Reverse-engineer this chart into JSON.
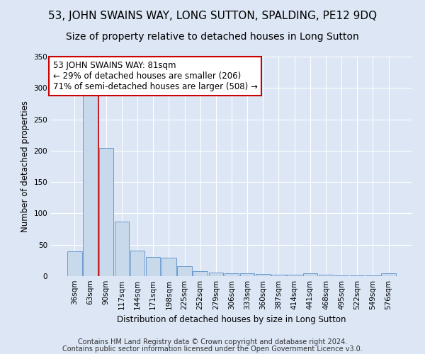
{
  "title": "53, JOHN SWAINS WAY, LONG SUTTON, SPALDING, PE12 9DQ",
  "subtitle": "Size of property relative to detached houses in Long Sutton",
  "xlabel": "Distribution of detached houses by size in Long Sutton",
  "ylabel": "Number of detached properties",
  "footer1": "Contains HM Land Registry data © Crown copyright and database right 2024.",
  "footer2": "Contains public sector information licensed under the Open Government Licence v3.0.",
  "bar_labels": [
    "36sqm",
    "63sqm",
    "90sqm",
    "117sqm",
    "144sqm",
    "171sqm",
    "198sqm",
    "225sqm",
    "252sqm",
    "279sqm",
    "306sqm",
    "333sqm",
    "360sqm",
    "387sqm",
    "414sqm",
    "441sqm",
    "468sqm",
    "495sqm",
    "522sqm",
    "549sqm",
    "576sqm"
  ],
  "bar_values": [
    40,
    290,
    204,
    87,
    41,
    30,
    29,
    16,
    8,
    6,
    5,
    4,
    3,
    2,
    2,
    4,
    2,
    1,
    1,
    1,
    5
  ],
  "bar_color": "#c9d9ec",
  "bar_edgecolor": "#5b8fc9",
  "vline_position": 1.5,
  "vline_color": "#cc0000",
  "annotation_text": "53 JOHN SWAINS WAY: 81sqm\n← 29% of detached houses are smaller (206)\n71% of semi-detached houses are larger (508) →",
  "annotation_box_facecolor": "#ffffff",
  "annotation_box_edgecolor": "#cc0000",
  "ylim": [
    0,
    350
  ],
  "yticks": [
    0,
    50,
    100,
    150,
    200,
    250,
    300,
    350
  ],
  "background_color": "#dce6f5",
  "axes_facecolor": "#dce6f5",
  "title_fontsize": 11,
  "subtitle_fontsize": 10,
  "annotation_fontsize": 8.5,
  "axis_label_fontsize": 8.5,
  "tick_fontsize": 7.5,
  "footer_fontsize": 7
}
